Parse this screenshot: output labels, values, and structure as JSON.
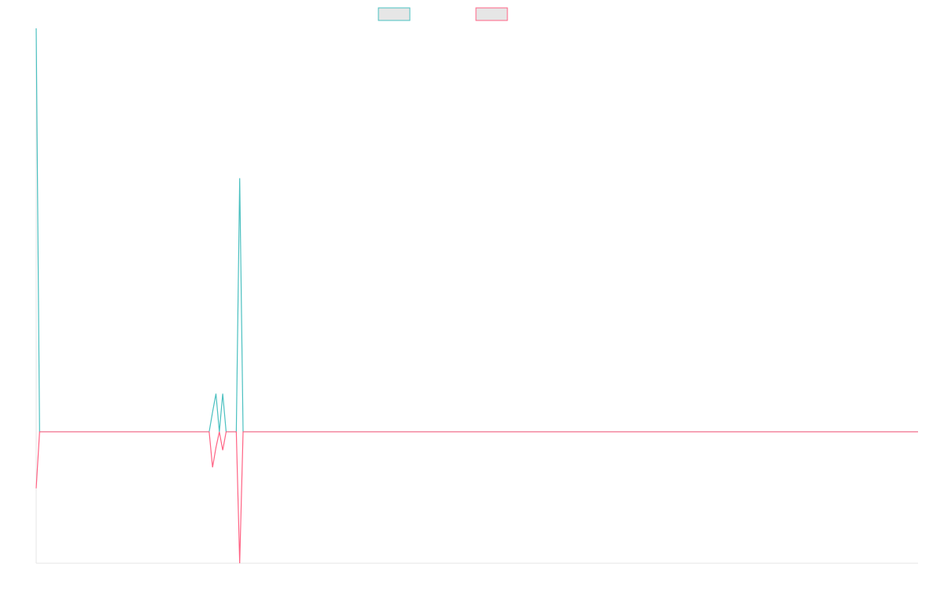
{
  "chart_data": {
    "type": "line",
    "x": [
      0,
      1,
      50,
      51,
      52,
      53,
      54,
      55,
      56,
      59,
      60,
      61,
      260
    ],
    "xlim": [
      0,
      260
    ],
    "ylim": [
      -1,
      3.07
    ],
    "series": [
      {
        "color": "#4bc0c0",
        "values": [
          3.07,
          0,
          0,
          0,
          0.15,
          0.29,
          0,
          0.29,
          0,
          0,
          1.93,
          0,
          0
        ]
      },
      {
        "color": "#ff6384",
        "values": [
          -0.43,
          0,
          0,
          0,
          -0.27,
          -0.12,
          0,
          -0.14,
          0,
          0,
          -1,
          0,
          0
        ]
      }
    ]
  }
}
